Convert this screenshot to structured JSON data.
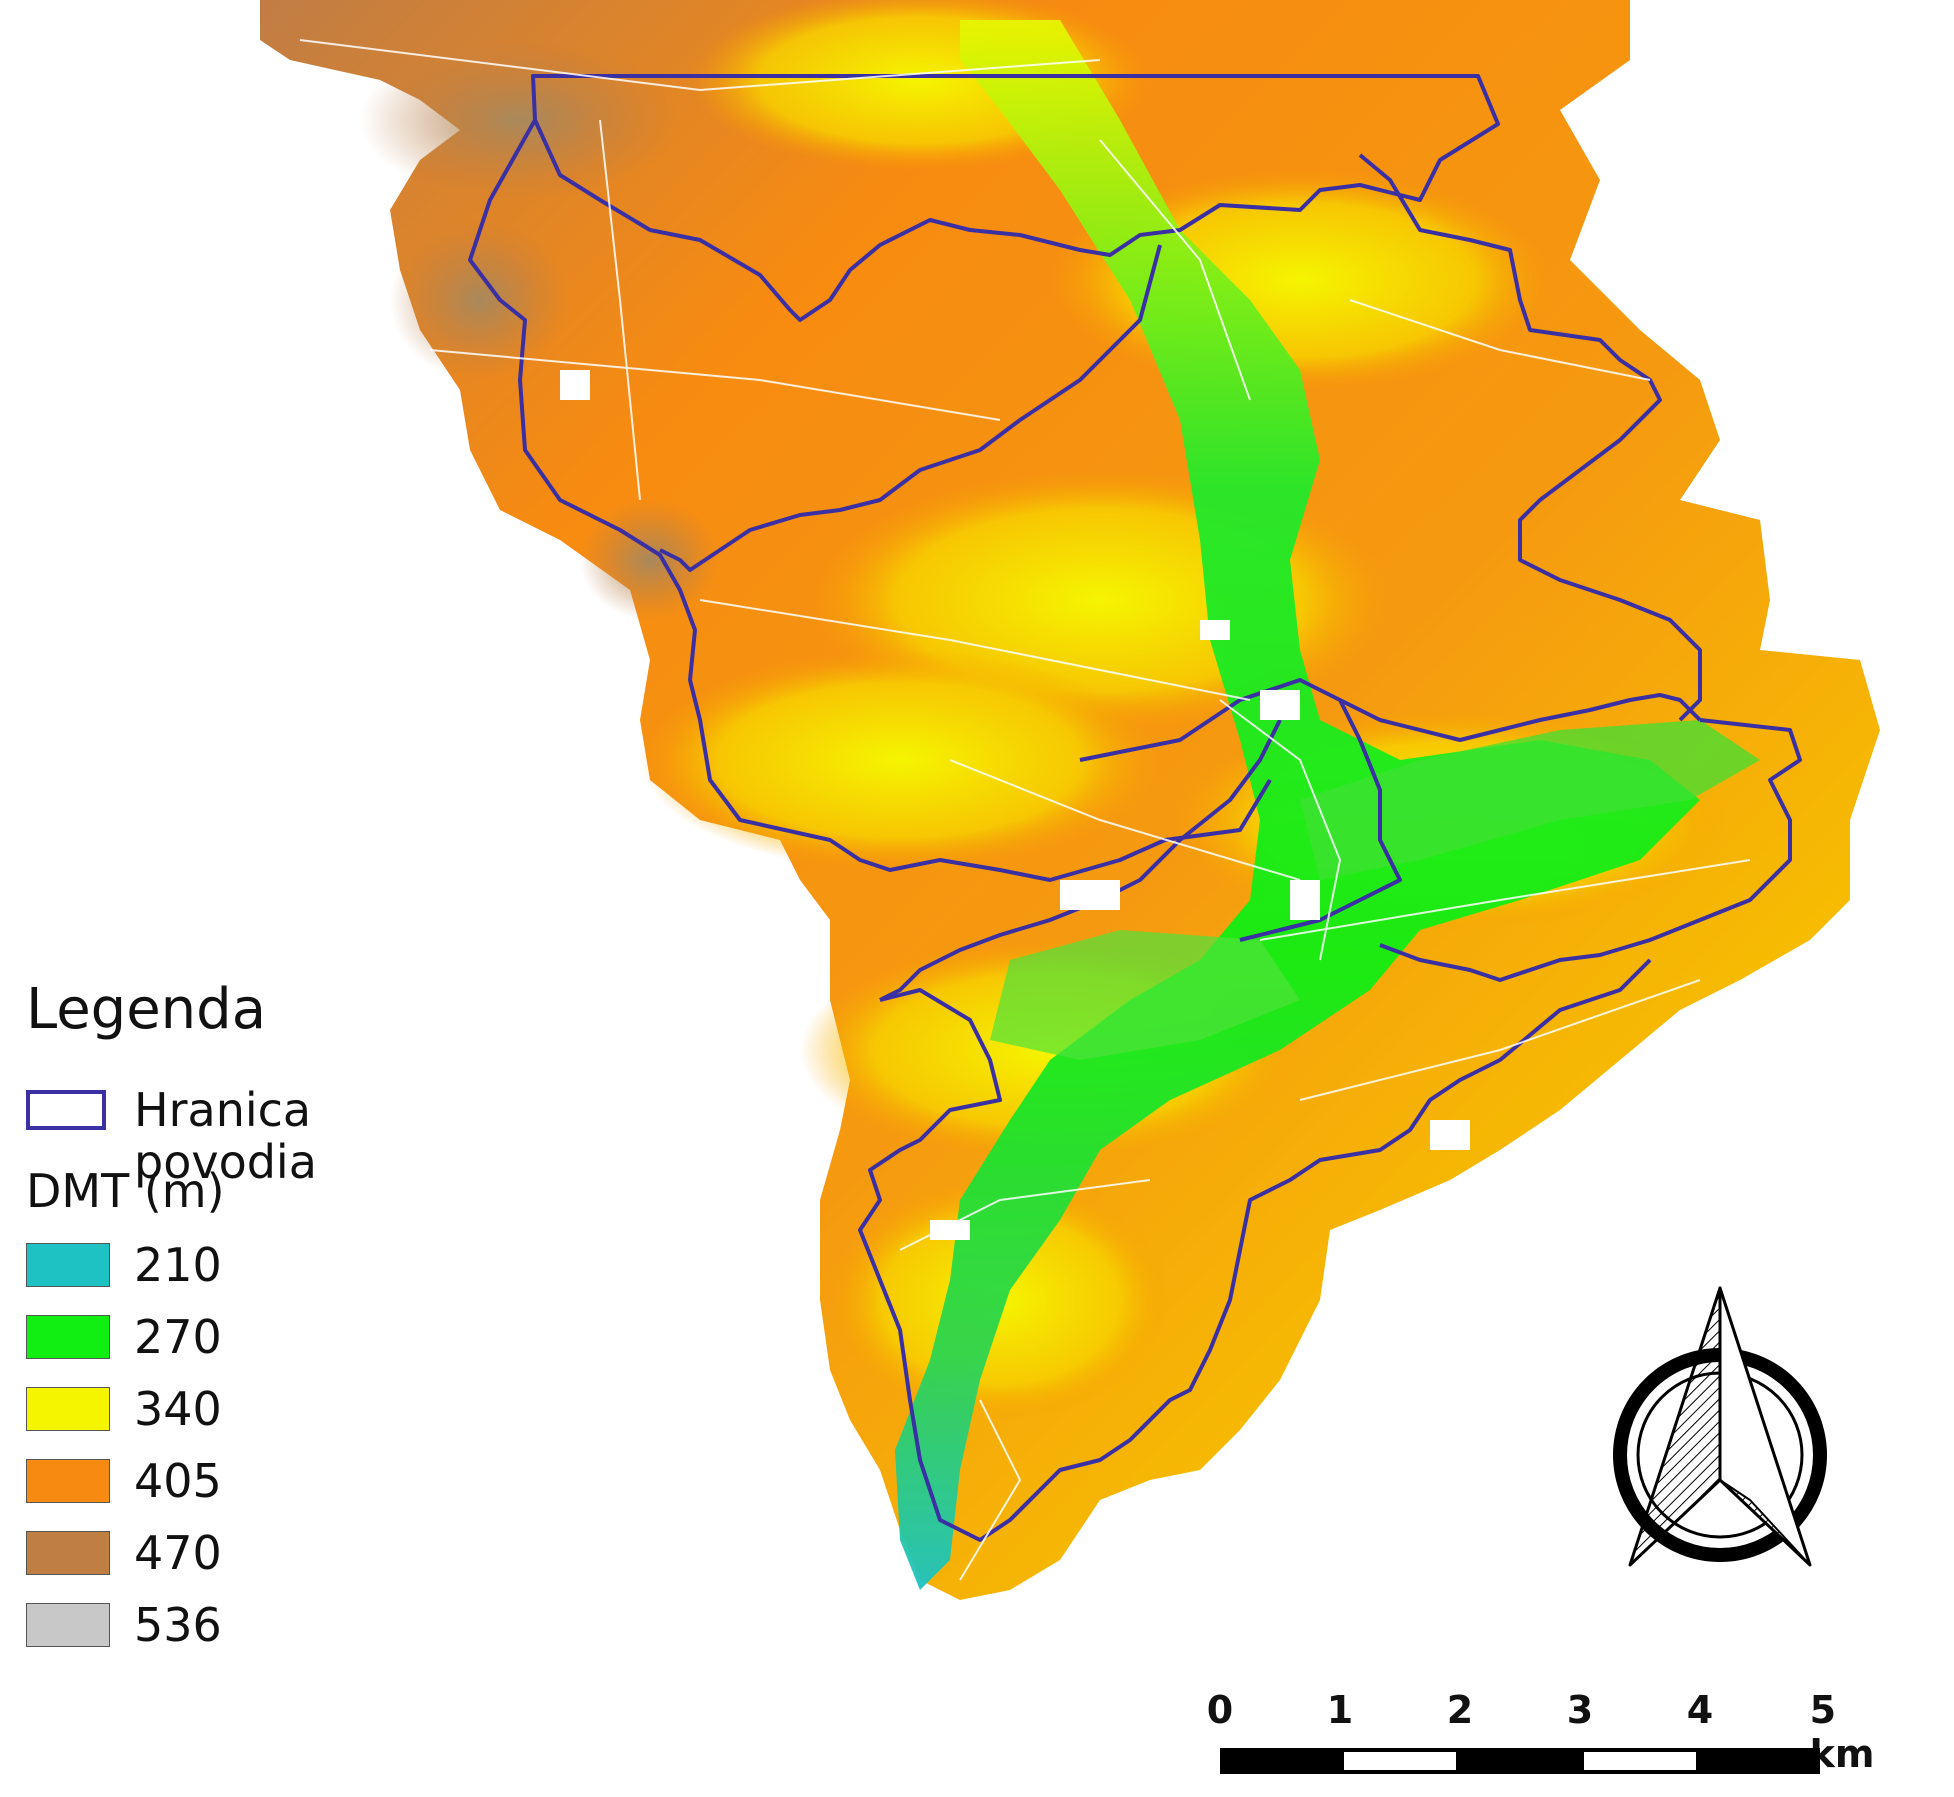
{
  "map": {
    "legend": {
      "title": "Legenda",
      "boundary_label": "Hranica povodia",
      "boundary_color": "#3a2fa3",
      "dmt_title": "DMT (m)",
      "classes": [
        {
          "value": "210",
          "color": "#1fc2c2"
        },
        {
          "value": "270",
          "color": "#11ee11"
        },
        {
          "value": "340",
          "color": "#f5f500"
        },
        {
          "value": "405",
          "color": "#f78b11"
        },
        {
          "value": "470",
          "color": "#bf7f43"
        },
        {
          "value": "536",
          "color": "#c8c8c8"
        }
      ]
    },
    "scalebar": {
      "labels": [
        "0",
        "1",
        "2",
        "3",
        "4",
        "5 km"
      ]
    },
    "north_arrow": {
      "icon": "north-arrow-icon"
    }
  }
}
